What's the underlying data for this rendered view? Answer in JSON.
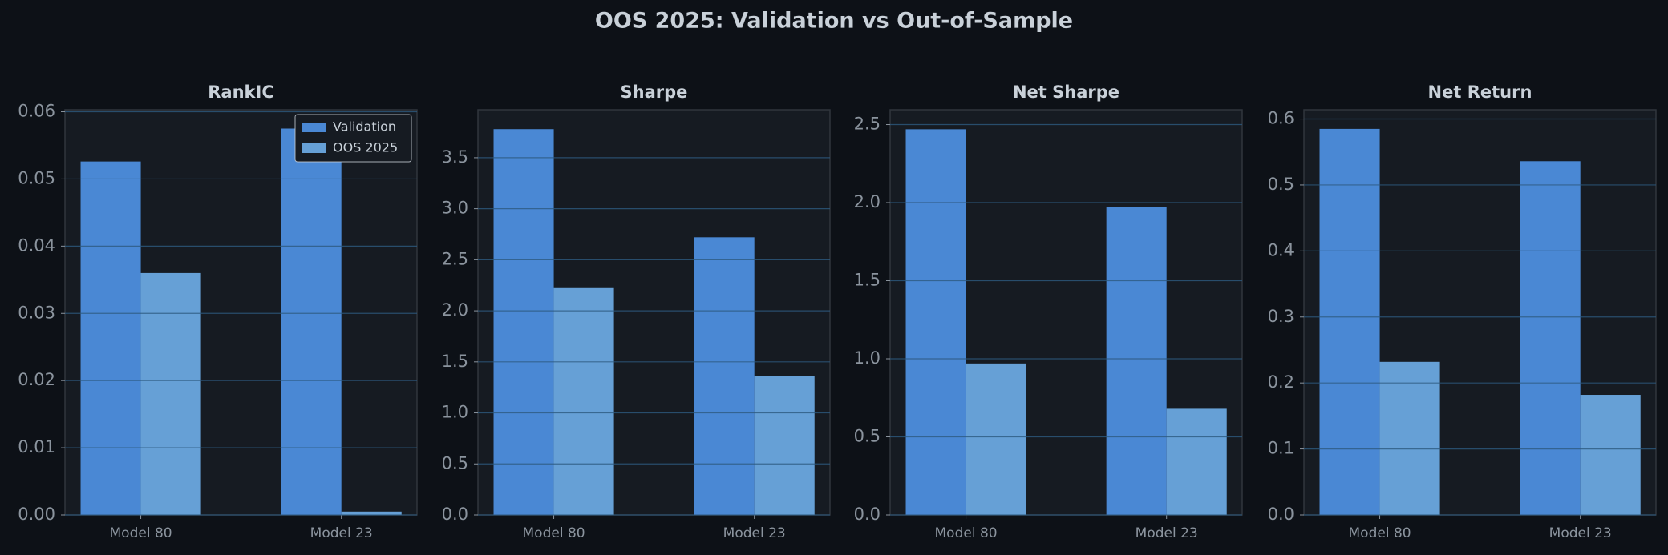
{
  "title": "OOS 2025: Validation vs Out-of-Sample",
  "chart_data": [
    {
      "type": "bar",
      "title": "RankIC",
      "categories": [
        "Model 80",
        "Model 23"
      ],
      "series": [
        {
          "name": "Validation",
          "color": "#4a88d4",
          "values": [
            0.0526,
            0.0575
          ]
        },
        {
          "name": "OOS 2025",
          "color": "#66a0d6",
          "values": [
            0.036,
            0.0005
          ]
        }
      ],
      "ylim": [
        0,
        0.0603
      ],
      "yticks": [
        {
          "value": 0,
          "label": "0.00"
        },
        {
          "value": 0.01,
          "label": "0.01"
        },
        {
          "value": 0.02,
          "label": "0.02"
        },
        {
          "value": 0.03,
          "label": "0.03"
        },
        {
          "value": 0.04,
          "label": "0.04"
        },
        {
          "value": 0.05,
          "label": "0.05"
        },
        {
          "value": 0.06,
          "label": "0.06"
        }
      ],
      "grid": true,
      "legend": "upper right"
    },
    {
      "type": "bar",
      "title": "Sharpe",
      "categories": [
        "Model 80",
        "Model 23"
      ],
      "series": [
        {
          "name": "Validation",
          "color": "#4a88d4",
          "values": [
            3.78,
            2.72
          ]
        },
        {
          "name": "OOS 2025",
          "color": "#66a0d6",
          "values": [
            2.23,
            1.36
          ]
        }
      ],
      "ylim": [
        0,
        3.97
      ],
      "yticks": [
        {
          "value": 0,
          "label": "0.0"
        },
        0.5,
        {
          "value": 1,
          "label": "1.0"
        },
        1.5,
        {
          "value": 2,
          "label": "2.0"
        },
        2.5,
        {
          "value": 3,
          "label": "3.0"
        },
        3.5
      ],
      "grid": true
    },
    {
      "type": "bar",
      "title": "Net Sharpe",
      "categories": [
        "Model 80",
        "Model 23"
      ],
      "series": [
        {
          "name": "Validation",
          "color": "#4a88d4",
          "values": [
            2.47,
            1.97
          ]
        },
        {
          "name": "OOS 2025",
          "color": "#66a0d6",
          "values": [
            0.97,
            0.68
          ]
        }
      ],
      "ylim": [
        0,
        2.595
      ],
      "yticks": [
        {
          "value": 0,
          "label": "0.0"
        },
        0.5,
        {
          "value": 1,
          "label": "1.0"
        },
        1.5,
        {
          "value": 2,
          "label": "2.0"
        },
        2.5
      ],
      "grid": true
    },
    {
      "type": "bar",
      "title": "Net Return",
      "categories": [
        "Model 80",
        "Model 23"
      ],
      "series": [
        {
          "name": "Validation",
          "color": "#4a88d4",
          "values": [
            0.585,
            0.536
          ]
        },
        {
          "name": "OOS 2025",
          "color": "#66a0d6",
          "values": [
            0.232,
            0.182
          ]
        }
      ],
      "ylim": [
        0,
        0.614
      ],
      "yticks": [
        {
          "value": 0,
          "label": "0.0"
        },
        0.1,
        0.2,
        0.3,
        0.4,
        0.5,
        0.6
      ],
      "grid": true
    }
  ]
}
